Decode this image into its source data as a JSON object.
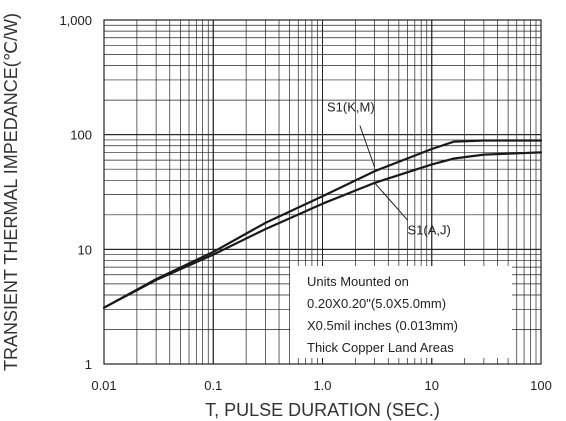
{
  "chart_data": {
    "type": "line",
    "title": "",
    "xlabel": "T, PULSE DURATION (SEC.)",
    "ylabel": "TRANSIENT THERMAL IMPEDANCE(℃/W)",
    "xscale": "log",
    "yscale": "log",
    "xlim": [
      0.01,
      100
    ],
    "ylim": [
      1,
      1000
    ],
    "grid": true,
    "x_tick_labels": [
      "0.01",
      "0.1",
      "1.0",
      "10",
      "100"
    ],
    "y_tick_labels": [
      "1",
      "10",
      "100",
      "1,000"
    ],
    "series": [
      {
        "name": "S1(K,M)",
        "x": [
          0.01,
          0.03,
          0.1,
          0.3,
          1,
          3,
          10,
          16,
          30,
          100
        ],
        "y": [
          3.1,
          5.5,
          9.5,
          17,
          29,
          48,
          75,
          87,
          89,
          89
        ]
      },
      {
        "name": "S1(A,J)",
        "x": [
          0.01,
          0.03,
          0.1,
          0.3,
          1,
          3,
          10,
          16,
          30,
          100
        ],
        "y": [
          3.1,
          5.4,
          9.0,
          15,
          25,
          38,
          55,
          62,
          67,
          70
        ]
      }
    ],
    "annotations": {
      "km_label": "S1(K,M)",
      "aj_label": "S1(A,J)"
    },
    "note_lines": [
      "Units Mounted on",
      "0.20X0.20\"(5.0X5.0mm)",
      "X0.5mil inches (0.013mm)",
      "Thick Copper Land Areas"
    ]
  }
}
